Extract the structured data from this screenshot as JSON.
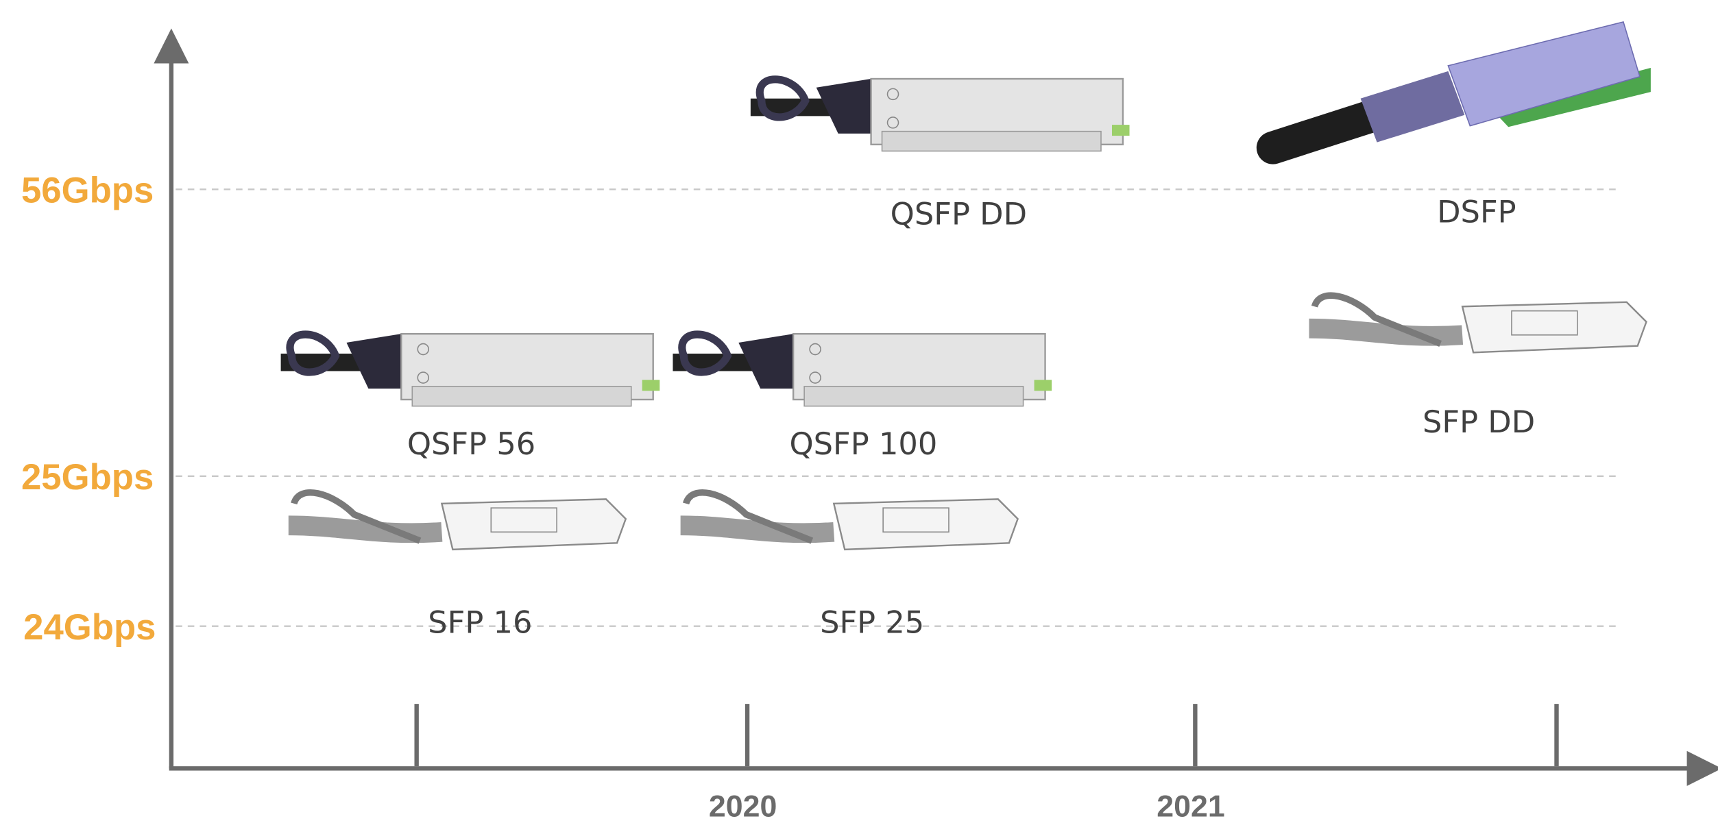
{
  "axis": {
    "y_labels": [
      "56Gbps",
      "25Gbps",
      "24Gbps"
    ],
    "x_labels": [
      "2020",
      "2021"
    ]
  },
  "items": [
    {
      "label": "QSFP DD"
    },
    {
      "label": "DSFP"
    },
    {
      "label": "QSFP 56"
    },
    {
      "label": "QSFP 100"
    },
    {
      "label": "SFP DD"
    },
    {
      "label": "SFP 16"
    },
    {
      "label": "SFP 25"
    }
  ]
}
